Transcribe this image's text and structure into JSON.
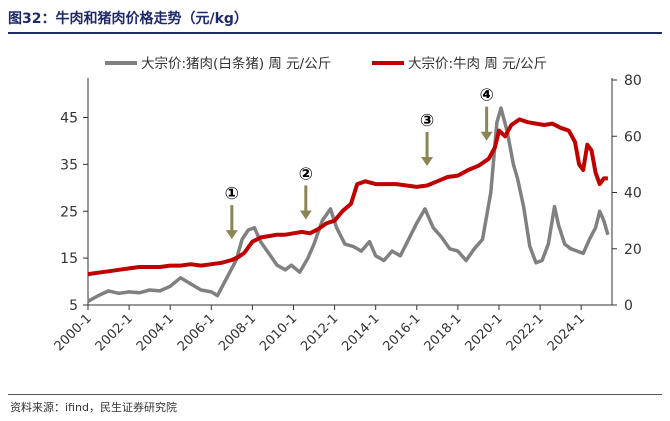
{
  "title": "图32：牛肉和猪肉价格走势（元/kg）",
  "source": "资料来源：ifind，民生证券研究院",
  "colors": {
    "pork": "#808080",
    "beef": "#c00000",
    "marker": "#8b8555",
    "axis": "#333333"
  },
  "chart_data": {
    "type": "line",
    "x_tick_labels": [
      "2000-1",
      "2002-1",
      "2004-1",
      "2006-1",
      "2008-1",
      "2010-1",
      "2012-1",
      "2014-1",
      "2016-1",
      "2018-1",
      "2020-1",
      "2022-1",
      "2024-1"
    ],
    "y_left": {
      "ticks": [
        5,
        15,
        25,
        35,
        45
      ],
      "range": [
        5,
        53
      ]
    },
    "y_right": {
      "ticks": [
        0,
        20,
        40,
        60,
        80
      ],
      "range": [
        0,
        80
      ]
    },
    "grid": false,
    "legend_position": "top",
    "series": [
      {
        "name": "大宗价:猪肉(白条猪) 周 元/公斤",
        "axis": "left",
        "points": [
          [
            2000.0,
            5.8
          ],
          [
            2000.5,
            7.0
          ],
          [
            2001.0,
            8.0
          ],
          [
            2001.5,
            7.5
          ],
          [
            2002.0,
            7.8
          ],
          [
            2002.5,
            7.6
          ],
          [
            2003.0,
            8.2
          ],
          [
            2003.5,
            8.0
          ],
          [
            2004.0,
            9.0
          ],
          [
            2004.5,
            10.8
          ],
          [
            2005.0,
            9.5
          ],
          [
            2005.5,
            8.2
          ],
          [
            2006.0,
            7.8
          ],
          [
            2006.3,
            7.0
          ],
          [
            2006.6,
            9.5
          ],
          [
            2006.9,
            12.0
          ],
          [
            2007.2,
            14.5
          ],
          [
            2007.5,
            19.0
          ],
          [
            2007.8,
            21.0
          ],
          [
            2008.1,
            21.5
          ],
          [
            2008.4,
            18.5
          ],
          [
            2008.8,
            16.0
          ],
          [
            2009.2,
            13.5
          ],
          [
            2009.6,
            12.5
          ],
          [
            2009.9,
            13.5
          ],
          [
            2010.3,
            12.0
          ],
          [
            2010.7,
            15.0
          ],
          [
            2011.0,
            18.0
          ],
          [
            2011.4,
            23.0
          ],
          [
            2011.8,
            25.5
          ],
          [
            2012.1,
            21.5
          ],
          [
            2012.5,
            18.0
          ],
          [
            2012.9,
            17.5
          ],
          [
            2013.3,
            16.5
          ],
          [
            2013.7,
            18.5
          ],
          [
            2014.0,
            15.5
          ],
          [
            2014.4,
            14.5
          ],
          [
            2014.8,
            16.5
          ],
          [
            2015.2,
            15.5
          ],
          [
            2015.6,
            19.0
          ],
          [
            2016.0,
            22.5
          ],
          [
            2016.4,
            25.5
          ],
          [
            2016.8,
            21.5
          ],
          [
            2017.2,
            19.5
          ],
          [
            2017.6,
            17.0
          ],
          [
            2018.0,
            16.5
          ],
          [
            2018.4,
            14.5
          ],
          [
            2018.8,
            17.0
          ],
          [
            2019.2,
            19.0
          ],
          [
            2019.6,
            29.0
          ],
          [
            2019.9,
            44.0
          ],
          [
            2020.1,
            47.0
          ],
          [
            2020.4,
            42.0
          ],
          [
            2020.7,
            35.0
          ],
          [
            2020.9,
            32.0
          ],
          [
            2021.2,
            26.0
          ],
          [
            2021.5,
            17.5
          ],
          [
            2021.8,
            14.0
          ],
          [
            2022.1,
            14.5
          ],
          [
            2022.4,
            18.0
          ],
          [
            2022.7,
            26.0
          ],
          [
            2022.9,
            22.0
          ],
          [
            2023.2,
            18.0
          ],
          [
            2023.5,
            17.0
          ],
          [
            2023.8,
            16.5
          ],
          [
            2024.1,
            16.0
          ],
          [
            2024.4,
            19.0
          ],
          [
            2024.7,
            21.5
          ],
          [
            2024.9,
            25.0
          ],
          [
            2025.1,
            23.0
          ],
          [
            2025.3,
            20.0
          ]
        ]
      },
      {
        "name": "大宗价:牛肉 周 元/公斤",
        "axis": "right",
        "points": [
          [
            2000.0,
            11.0
          ],
          [
            2000.5,
            11.5
          ],
          [
            2001.0,
            12.0
          ],
          [
            2001.5,
            12.5
          ],
          [
            2002.0,
            13.0
          ],
          [
            2002.5,
            13.5
          ],
          [
            2003.0,
            13.5
          ],
          [
            2003.5,
            13.5
          ],
          [
            2004.0,
            14.0
          ],
          [
            2004.5,
            14.0
          ],
          [
            2005.0,
            14.5
          ],
          [
            2005.5,
            14.0
          ],
          [
            2006.0,
            14.5
          ],
          [
            2006.5,
            15.0
          ],
          [
            2007.0,
            16.0
          ],
          [
            2007.3,
            17.0
          ],
          [
            2007.6,
            18.5
          ],
          [
            2008.0,
            22.5
          ],
          [
            2008.4,
            24.0
          ],
          [
            2008.8,
            24.5
          ],
          [
            2009.2,
            25.0
          ],
          [
            2009.6,
            25.0
          ],
          [
            2010.0,
            25.5
          ],
          [
            2010.4,
            26.0
          ],
          [
            2010.8,
            25.5
          ],
          [
            2011.2,
            27.0
          ],
          [
            2011.6,
            29.0
          ],
          [
            2012.0,
            30.0
          ],
          [
            2012.4,
            33.5
          ],
          [
            2012.8,
            36.0
          ],
          [
            2013.1,
            43.0
          ],
          [
            2013.5,
            44.0
          ],
          [
            2014.0,
            43.0
          ],
          [
            2014.5,
            43.0
          ],
          [
            2015.0,
            43.0
          ],
          [
            2015.5,
            42.5
          ],
          [
            2016.0,
            42.0
          ],
          [
            2016.5,
            42.5
          ],
          [
            2017.0,
            44.0
          ],
          [
            2017.5,
            45.5
          ],
          [
            2018.0,
            46.0
          ],
          [
            2018.5,
            48.0
          ],
          [
            2019.0,
            49.5
          ],
          [
            2019.5,
            52.0
          ],
          [
            2019.8,
            56.0
          ],
          [
            2020.0,
            62.0
          ],
          [
            2020.3,
            60.0
          ],
          [
            2020.6,
            64.0
          ],
          [
            2021.0,
            66.0
          ],
          [
            2021.4,
            65.0
          ],
          [
            2021.8,
            64.5
          ],
          [
            2022.2,
            64.0
          ],
          [
            2022.6,
            64.5
          ],
          [
            2023.0,
            63.0
          ],
          [
            2023.4,
            62.0
          ],
          [
            2023.7,
            58.0
          ],
          [
            2023.9,
            50.0
          ],
          [
            2024.1,
            48.0
          ],
          [
            2024.3,
            57.0
          ],
          [
            2024.5,
            55.0
          ],
          [
            2024.7,
            47.0
          ],
          [
            2024.9,
            43.0
          ],
          [
            2025.1,
            45.0
          ],
          [
            2025.3,
            45.0
          ]
        ]
      }
    ],
    "annotations": [
      {
        "label": "①",
        "x": 2007.0,
        "y_right": 22.0
      },
      {
        "label": "②",
        "x": 2010.6,
        "y_right": 29.0
      },
      {
        "label": "③",
        "x": 2016.5,
        "y_right": 48.0
      },
      {
        "label": "④",
        "x": 2019.4,
        "y_right": 57.0
      }
    ]
  }
}
